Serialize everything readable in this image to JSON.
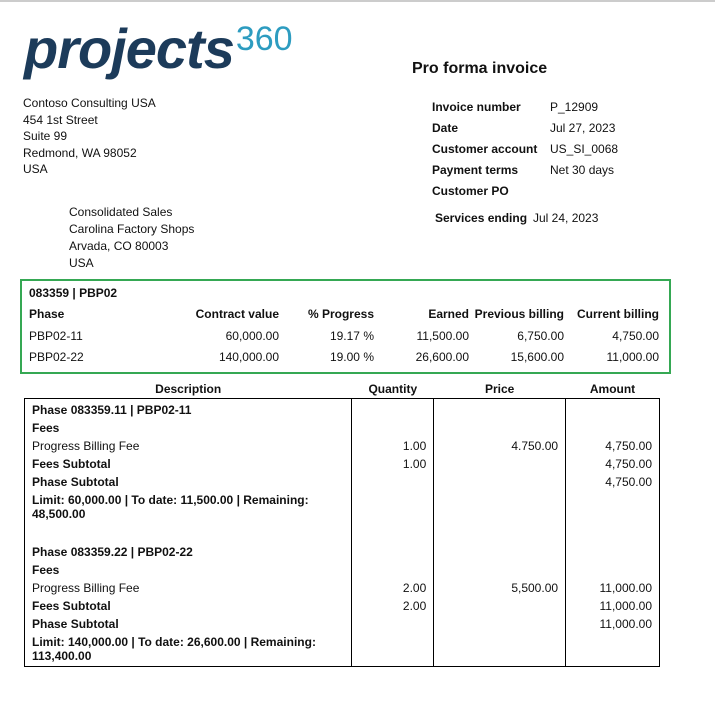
{
  "logo": {
    "text": "projects",
    "suffix": "360"
  },
  "title": "Pro forma invoice",
  "from_address": [
    "Contoso Consulting USA",
    "454 1st Street",
    "Suite 99",
    "Redmond, WA 98052",
    "USA"
  ],
  "invoice_details": [
    {
      "label": "Invoice number",
      "value": "P_12909"
    },
    {
      "label": "Date",
      "value": "Jul 27, 2023"
    },
    {
      "label": "Customer account",
      "value": "US_SI_0068"
    },
    {
      "label": "Payment terms",
      "value": "Net 30 days"
    },
    {
      "label": "Customer PO"
    }
  ],
  "services_ending": {
    "label": "Services ending",
    "value": "Jul 24, 2023"
  },
  "ship_to": [
    "Consolidated Sales",
    "Carolina Factory Shops",
    "Arvada, CO 80003",
    "USA"
  ],
  "summary": {
    "title": "083359 | PBP02",
    "columns": [
      "Phase",
      "Contract value",
      "% Progress",
      "Earned",
      "Previous billing",
      "Current billing"
    ],
    "rows": [
      [
        "PBP02-11",
        "60,000.00",
        "19.17 %",
        "11,500.00",
        "6,750.00",
        "4,750.00"
      ],
      [
        "PBP02-22",
        "140,000.00",
        "19.00 %",
        "26,600.00",
        "15,600.00",
        "11,000.00"
      ]
    ]
  },
  "lines": {
    "columns": [
      "Description",
      "Quantity",
      "Price",
      "Amount"
    ],
    "phases": [
      {
        "title": "Phase 083359.11 | PBP02-11",
        "group": "Fees",
        "items": [
          {
            "description": "Progress Billing Fee",
            "quantity": "1.00",
            "price": "4.750.00",
            "amount": "4,750.00"
          }
        ],
        "fees_subtotal": {
          "label": "Fees Subtotal",
          "quantity": "1.00",
          "amount": "4,750.00"
        },
        "phase_subtotal": {
          "label": "Phase Subtotal",
          "amount": "4,750.00"
        },
        "limit": "Limit: 60,000.00 | To date: 11,500.00 | Remaining: 48,500.00"
      },
      {
        "title": "Phase 083359.22 | PBP02-22",
        "group": "Fees",
        "items": [
          {
            "description": "Progress Billing Fee",
            "quantity": "2.00",
            "price": "5,500.00",
            "amount": "11,000.00"
          }
        ],
        "fees_subtotal": {
          "label": "Fees Subtotal",
          "quantity": "2.00",
          "amount": "11,000.00"
        },
        "phase_subtotal": {
          "label": "Phase Subtotal",
          "amount": "11,000.00"
        },
        "limit": "Limit: 140,000.00 | To date: 26,600.00 | Remaining: 113,400.00"
      }
    ]
  }
}
